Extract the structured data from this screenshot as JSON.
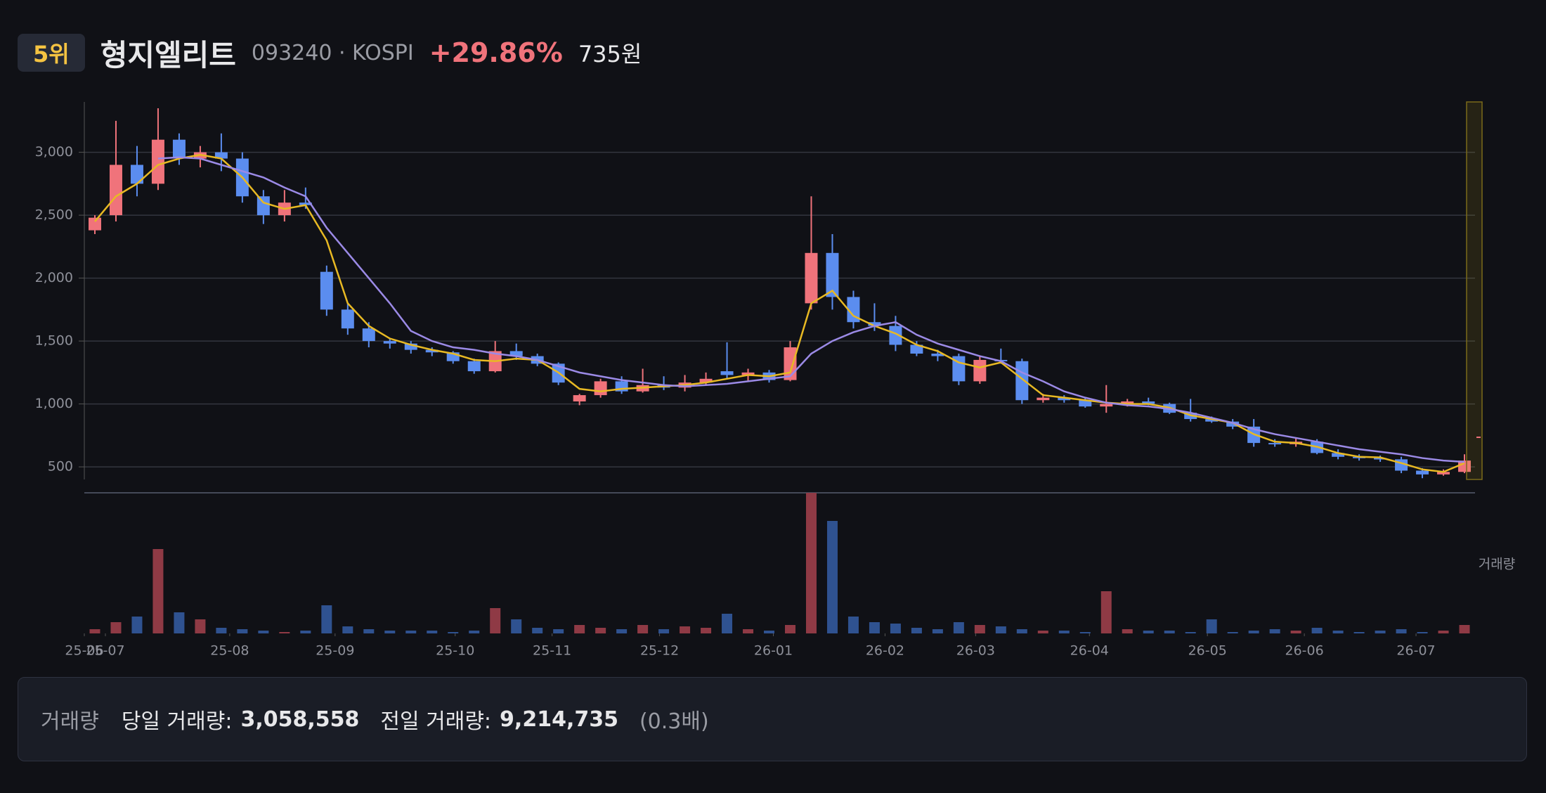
{
  "header": {
    "rank": "5위",
    "name": "형지엘리트",
    "code": "093240 · KOSPI",
    "change": "+29.86%",
    "price": "735원"
  },
  "chart_data": {
    "type": "candlestick",
    "xlim": [
      0,
      66
    ],
    "xticks": [
      {
        "value": 0,
        "label": "25-06"
      },
      {
        "value": 1.0,
        "label": "25-07"
      },
      {
        "value": 6.9,
        "label": "25-08"
      },
      {
        "value": 11.9,
        "label": "25-09"
      },
      {
        "value": 17.6,
        "label": "25-10"
      },
      {
        "value": 22.2,
        "label": "25-11"
      },
      {
        "value": 27.3,
        "label": "25-12"
      },
      {
        "value": 32.7,
        "label": "26-01"
      },
      {
        "value": 38.0,
        "label": "26-02"
      },
      {
        "value": 42.3,
        "label": "26-03"
      },
      {
        "value": 47.7,
        "label": "26-04"
      },
      {
        "value": 53.3,
        "label": "26-05"
      },
      {
        "value": 57.9,
        "label": "26-06"
      },
      {
        "value": 63.2,
        "label": "26-07"
      }
    ],
    "ylim": [
      400,
      3400
    ],
    "yticks": [
      500,
      {
        "value": 1000,
        "label": "1,000"
      },
      {
        "value": 1500,
        "label": "1,500"
      },
      {
        "value": 2000,
        "label": "2,000"
      },
      {
        "value": 2500,
        "label": "2,500"
      },
      {
        "value": 3000,
        "label": "3,000"
      }
    ],
    "grid": true,
    "up_color": "#f0737b",
    "down_color": "#5b8def",
    "open": [
      2380,
      2500,
      2900,
      2750,
      3100,
      2950,
      3000,
      2950,
      2650,
      2500,
      2600,
      2050,
      1750,
      1600,
      1500,
      1480,
      1430,
      1410,
      1340,
      1260,
      1420,
      1380,
      1320,
      1020,
      1070,
      1180,
      1100,
      1150,
      1130,
      1170,
      1260,
      1230,
      1250,
      1190,
      1800,
      2200,
      1850,
      1650,
      1620,
      1470,
      1400,
      1380,
      1180,
      1350,
      1340,
      1030,
      1050,
      1030,
      980,
      1000,
      1020,
      1000,
      930,
      880,
      860,
      820,
      690,
      680,
      700,
      610,
      580,
      570,
      560,
      470,
      440,
      460
    ],
    "high": [
      2500,
      3250,
      3050,
      3350,
      3150,
      3050,
      3150,
      3000,
      2700,
      2700,
      2720,
      2100,
      1800,
      1650,
      1520,
      1500,
      1450,
      1420,
      1360,
      1500,
      1480,
      1400,
      1330,
      1080,
      1200,
      1220,
      1280,
      1220,
      1230,
      1250,
      1490,
      1280,
      1270,
      1500,
      2650,
      2350,
      1900,
      1800,
      1700,
      1500,
      1430,
      1400,
      1380,
      1440,
      1360,
      1080,
      1070,
      1050,
      1150,
      1040,
      1050,
      1010,
      1040,
      900,
      880,
      880,
      720,
      730,
      720,
      640,
      600,
      590,
      580,
      490,
      480,
      600
    ],
    "low": [
      2350,
      2450,
      2650,
      2700,
      2900,
      2880,
      2850,
      2600,
      2430,
      2450,
      2550,
      1700,
      1550,
      1450,
      1440,
      1400,
      1380,
      1320,
      1240,
      1250,
      1350,
      1300,
      1150,
      990,
      1050,
      1080,
      1090,
      1110,
      1100,
      1150,
      1200,
      1180,
      1170,
      1180,
      1750,
      1750,
      1600,
      1580,
      1420,
      1380,
      1340,
      1150,
      1160,
      1320,
      1000,
      1010,
      1010,
      970,
      930,
      980,
      990,
      920,
      860,
      850,
      800,
      660,
      660,
      660,
      600,
      560,
      550,
      540,
      450,
      410,
      430,
      450
    ],
    "close": [
      2480,
      2900,
      2750,
      3100,
      2950,
      3000,
      2950,
      2650,
      2500,
      2600,
      2580,
      1750,
      1600,
      1500,
      1480,
      1430,
      1410,
      1340,
      1260,
      1420,
      1380,
      1320,
      1170,
      1070,
      1180,
      1100,
      1150,
      1130,
      1170,
      1200,
      1230,
      1250,
      1190,
      1450,
      2200,
      1850,
      1650,
      1620,
      1470,
      1400,
      1380,
      1180,
      1350,
      1340,
      1030,
      1050,
      1030,
      980,
      1000,
      1020,
      1000,
      930,
      880,
      860,
      820,
      690,
      680,
      700,
      610,
      580,
      570,
      560,
      470,
      440,
      460,
      550
    ],
    "ma_lines": [
      {
        "color": "#e8b923",
        "values": [
          2450,
          2650,
          2750,
          2900,
          2950,
          2980,
          2950,
          2800,
          2600,
          2550,
          2580,
          2300,
          1800,
          1620,
          1520,
          1470,
          1430,
          1400,
          1350,
          1340,
          1360,
          1350,
          1250,
          1120,
          1100,
          1120,
          1130,
          1140,
          1150,
          1170,
          1200,
          1230,
          1220,
          1250,
          1800,
          1900,
          1700,
          1620,
          1560,
          1470,
          1420,
          1330,
          1290,
          1330,
          1200,
          1070,
          1050,
          1030,
          1010,
          1000,
          1000,
          970,
          910,
          880,
          850,
          760,
          700,
          690,
          660,
          610,
          580,
          575,
          530,
          480,
          460,
          530
        ]
      },
      {
        "color": "#9b8ae6",
        "values": [
          null,
          null,
          null,
          2950,
          2960,
          2950,
          2900,
          2850,
          2800,
          2720,
          2650,
          2400,
          2200,
          2000,
          1800,
          1580,
          1500,
          1450,
          1430,
          1400,
          1380,
          1350,
          1300,
          1250,
          1220,
          1190,
          1170,
          1150,
          1140,
          1150,
          1160,
          1180,
          1200,
          1220,
          1400,
          1500,
          1570,
          1620,
          1650,
          1550,
          1480,
          1430,
          1380,
          1340,
          1250,
          1180,
          1100,
          1050,
          1010,
          990,
          980,
          960,
          930,
          890,
          850,
          800,
          760,
          730,
          700,
          670,
          640,
          620,
          600,
          570,
          550,
          540
        ]
      }
    ],
    "current_price": 735,
    "volume": {
      "label": "거래량",
      "ylim": [
        0,
        100
      ],
      "up_color": "#8f3a45",
      "down_color": "#2f5290",
      "values": [
        3,
        8,
        12,
        60,
        15,
        10,
        4,
        3,
        2,
        1,
        2,
        20,
        5,
        3,
        2,
        2,
        2,
        1,
        2,
        18,
        10,
        4,
        3,
        6,
        4,
        3,
        6,
        3,
        5,
        4,
        14,
        3,
        2,
        6,
        100,
        80,
        12,
        8,
        7,
        4,
        3,
        8,
        6,
        5,
        3,
        2,
        2,
        1,
        30,
        3,
        2,
        2,
        1,
        10,
        1,
        2,
        3,
        2,
        4,
        2,
        1,
        2,
        3,
        1,
        2,
        6
      ]
    }
  },
  "footer": {
    "label": "거래량",
    "today_label": "당일 거래량:",
    "today": "3,058,558",
    "prev_label": "전일 거래량:",
    "prev": "9,214,735",
    "ratio": "(0.3배)"
  }
}
